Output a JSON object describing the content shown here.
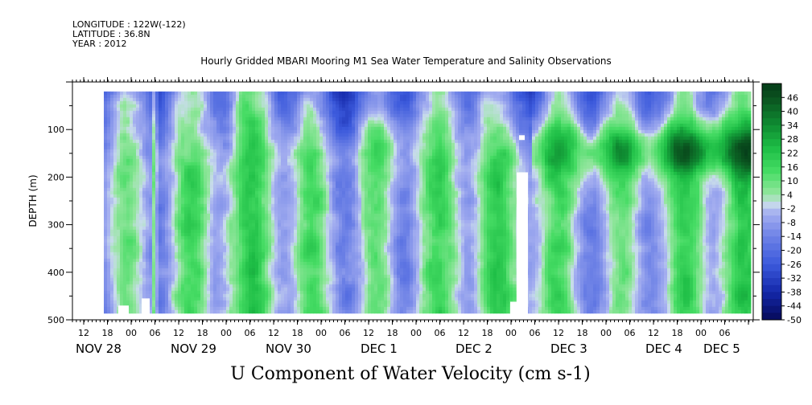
{
  "header": {
    "longitude": "LONGITUDE : 122W(-122)",
    "latitude": "LATITUDE : 36.8N",
    "year": "YEAR : 2012"
  },
  "chart_data": {
    "type": "heatmap",
    "title": "Hourly Gridded MBARI Mooring M1 Sea Water Temperature and Salinity Observations",
    "xlabel": "",
    "ylabel": "DEPTH (m)",
    "colorbar_label": "U Component of Water Velocity (cm s-1)",
    "x_start": "NOV 28 06:00",
    "x_end": "DEC 5 14:00",
    "x_tick_hours": [
      "12",
      "18",
      "00",
      "06",
      "12",
      "18",
      "00",
      "06",
      "12",
      "18",
      "00",
      "06",
      "12",
      "18",
      "00",
      "06",
      "12",
      "18",
      "00",
      "06",
      "12",
      "18",
      "00",
      "06",
      "12",
      "18",
      "00",
      "06"
    ],
    "x_date_labels": [
      "NOV 28",
      "NOV 29",
      "NOV 30",
      "DEC 1",
      "DEC 2",
      "DEC 3",
      "DEC 4",
      "DEC 5"
    ],
    "y_ticks": [
      100,
      200,
      300,
      400,
      500
    ],
    "ylim": [
      500,
      0
    ],
    "colorbar_ticks": [
      46,
      40,
      34,
      28,
      22,
      16,
      10,
      4,
      -2,
      -8,
      -14,
      -20,
      -26,
      -32,
      -38,
      -44,
      -50
    ],
    "colorbar_range": [
      -50,
      52
    ],
    "colors": {
      "strong_positive": "#0a4a1c",
      "positive": "#1ed24a",
      "weak_positive": "#9ae8a6",
      "weak_negative": "#a8b0ee",
      "negative": "#5a70e0",
      "strong_negative": "#06126a"
    },
    "features": [
      {
        "depth_range": [
          20,
          470
        ],
        "description": "alternating vertical bands of weak positive (green) and weak negative (blue-lavender) velocity"
      },
      {
        "time": "DEC 1 00",
        "depth_range": [
          20,
          120
        ],
        "value": -30
      },
      {
        "time": "DEC 3 00",
        "depth_range": [
          20,
          150
        ],
        "value": -34
      },
      {
        "time": "DEC 3 12 to DEC 5 12",
        "depth_range": [
          80,
          200
        ],
        "value": 28
      }
    ]
  }
}
